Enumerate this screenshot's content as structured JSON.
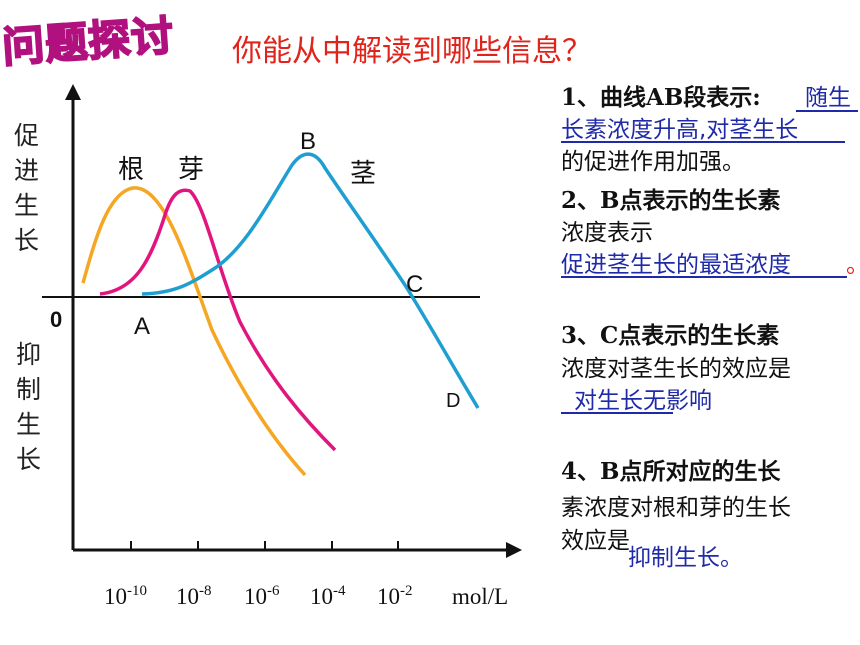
{
  "title": "问题探讨",
  "question": "你能从中解读到哪些信息？",
  "graph": {
    "y_promote": [
      "促",
      "进",
      "生",
      "长"
    ],
    "y_inhibit": [
      "抑",
      "制",
      "生",
      "长"
    ],
    "origin": "0",
    "x_ticks": [
      {
        "base": "10",
        "exp": "-10"
      },
      {
        "base": "10",
        "exp": "-8"
      },
      {
        "base": "10",
        "exp": "-6"
      },
      {
        "base": "10",
        "exp": "-4"
      },
      {
        "base": "10",
        "exp": "-2"
      }
    ],
    "x_unit": "mol/L",
    "curves": [
      {
        "label": "根",
        "color": "#f5a623"
      },
      {
        "label": "芽",
        "color": "#e2157e"
      },
      {
        "label": "茎",
        "color": "#1f9ed1"
      }
    ],
    "points": {
      "A": "A",
      "B": "B",
      "C": "C",
      "D": "D"
    }
  },
  "panel": {
    "q1_prefix": "1、曲线AB段表示:",
    "q1_ans_a": "随生",
    "q1_ans_b": "长素浓度升高,对茎生长",
    "q1_ans_c": "的促进作用加强。",
    "q2_a": "2、B点表示的生长素",
    "q2_b": "浓度表示",
    "q2_ans": "促进茎生长的最适浓度",
    "q2_dot": "。",
    "q3_a": "3、C点表示的生长素",
    "q3_b": "浓度对茎生长的效应是",
    "q3_ans": "对生长无影响",
    "q4_a": "4、B点所对应的生长",
    "q4_b": "素浓度对根和芽的生长",
    "q4_c": "效应是",
    "q4_ans": "抑制生长。"
  }
}
